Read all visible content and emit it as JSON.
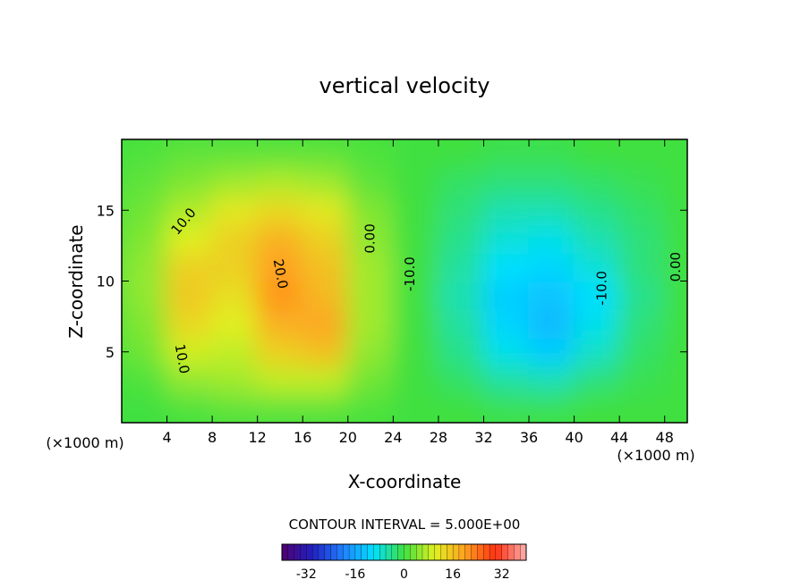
{
  "chart_data": {
    "type": "contour-fill",
    "title": "vertical velocity",
    "xlabel": "X-coordinate",
    "ylabel": "Z-coordinate",
    "xunit": "(×1000 m)",
    "yunit": "(×1000 m)",
    "xlim": [
      0,
      50
    ],
    "ylim": [
      0,
      20
    ],
    "xticks": [
      4,
      8,
      12,
      16,
      20,
      24,
      28,
      32,
      36,
      40,
      44,
      48
    ],
    "yticks": [
      5,
      10,
      15
    ],
    "x": [
      2,
      6,
      10,
      14,
      18,
      22,
      26,
      30,
      34,
      38,
      42,
      46,
      50
    ],
    "y": [
      1,
      3,
      5,
      7,
      9,
      11,
      13,
      15,
      17,
      19
    ],
    "z": [
      [
        0,
        1,
        2,
        2,
        2,
        1,
        0,
        0,
        -1,
        -1,
        0,
        0,
        0
      ],
      [
        1,
        5,
        6,
        8,
        8,
        3,
        0,
        -2,
        -5,
        -6,
        -3,
        -1,
        0
      ],
      [
        3,
        9,
        8,
        14,
        16,
        5,
        0,
        -4,
        -9,
        -12,
        -7,
        -2,
        0
      ],
      [
        4,
        13,
        10,
        18,
        19,
        6,
        0,
        -5,
        -11,
        -14,
        -9,
        -3,
        0
      ],
      [
        5,
        15,
        12,
        21,
        17,
        6,
        0,
        -6,
        -12,
        -13,
        -10,
        -4,
        0
      ],
      [
        5,
        14,
        14,
        20,
        16,
        6,
        0,
        -5,
        -10,
        -11,
        -8,
        -3,
        0
      ],
      [
        4,
        10,
        14,
        18,
        14,
        5,
        0,
        -4,
        -8,
        -9,
        -6,
        -3,
        0
      ],
      [
        3,
        7,
        11,
        13,
        11,
        4,
        0,
        -3,
        -6,
        -6,
        -4,
        -2,
        0
      ],
      [
        2,
        4,
        6,
        7,
        6,
        2,
        0,
        -2,
        -3,
        -3,
        -2,
        -1,
        0
      ],
      [
        1,
        2,
        2,
        2,
        2,
        1,
        0,
        0,
        -1,
        -1,
        0,
        0,
        0
      ]
    ],
    "clim": [
      -40,
      40
    ],
    "colormap": [
      "#500070",
      "#2020c0",
      "#2080ff",
      "#00e0ff",
      "#40e040",
      "#e0f020",
      "#ffa020",
      "#ff3010",
      "#ffb0b0"
    ],
    "colorbar_ticks": [
      -32,
      -16,
      0,
      16,
      32
    ],
    "contour_interval": "CONTOUR INTERVAL = 5.000E+00",
    "annotations": [
      {
        "text": "10.0",
        "x": 5.5,
        "y": 14.2,
        "rotate": -50
      },
      {
        "text": "20.0",
        "x": 14,
        "y": 10.5,
        "rotate": 80
      },
      {
        "text": "0.00",
        "x": 22,
        "y": 13,
        "rotate": -90
      },
      {
        "text": "-10.0",
        "x": 25.5,
        "y": 10.5,
        "rotate": -90
      },
      {
        "text": "-10.0",
        "x": 42.5,
        "y": 9.5,
        "rotate": -90
      },
      {
        "text": "0.00",
        "x": 49,
        "y": 11,
        "rotate": -90
      },
      {
        "text": "10.0",
        "x": 5.3,
        "y": 4.5,
        "rotate": 80
      }
    ]
  }
}
